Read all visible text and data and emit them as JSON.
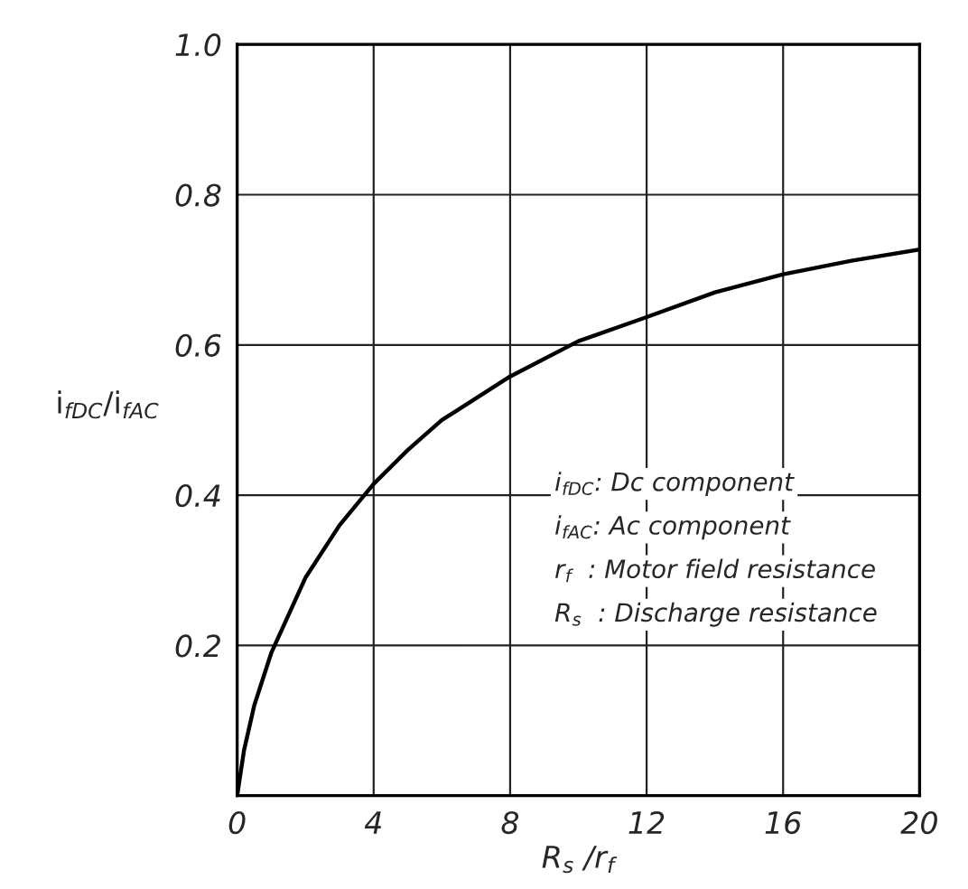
{
  "chart_data": {
    "type": "line",
    "xlabel": "R$_{s}$ /r$_{f}$",
    "ylabel": "i$_{fDC}$/i$_{fAC}$",
    "x": [
      0,
      0.2,
      0.5,
      1,
      2,
      3,
      4,
      5,
      6,
      8,
      10,
      12,
      14,
      16,
      18,
      20
    ],
    "series": [
      {
        "color": "#000000",
        "values": [
          0,
          0.06,
          0.12,
          0.19,
          0.29,
          0.36,
          0.415,
          0.46,
          0.5,
          0.558,
          0.605,
          0.637,
          0.67,
          0.694,
          0.712,
          0.727
        ]
      }
    ],
    "xlim": [
      0,
      20
    ],
    "xticks": [
      0,
      4,
      8,
      12,
      16,
      20
    ],
    "ylim": [
      0,
      1.0
    ],
    "yticks": [
      {
        "value": 0,
        "label": null
      },
      0.2,
      0.4,
      0.6,
      0.8,
      {
        "value": 1.0,
        "label": "1.0"
      }
    ],
    "grid": true,
    "legend": false,
    "marker": "none",
    "line_style": "solid",
    "annotations": [
      "i$_{fDC}$: Dc component",
      "i$_{fAC}$: Ac component",
      "r$_{f}$  : Motor field resistance",
      "R$_{s}$  : Discharge resistance"
    ]
  }
}
